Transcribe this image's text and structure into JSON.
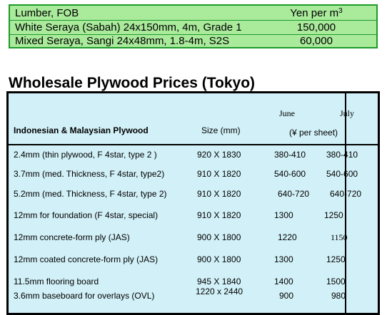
{
  "lumber": {
    "header": {
      "label": "Lumber, FOB",
      "unit": "Yen per m",
      "unit_sup": "3"
    },
    "rows": [
      {
        "name": "White Seraya (Sabah) 24x150mm, 4m, Grade 1",
        "price": "150,000"
      },
      {
        "name": "Mixed Seraya, Sangi 24x48mm, 1.8-4m, S2S",
        "price": "60,000"
      }
    ]
  },
  "plywood": {
    "title": "Wholesale Plywood Prices (Tokyo)",
    "headers": {
      "product": "Indonesian & Malaysian Plywood",
      "size": "Size (mm)",
      "june": "June",
      "july": "July",
      "unit": "(¥ per sheet)"
    },
    "rows": [
      {
        "name": "2.4mm  (thin plywood, F 4star, type 2 )",
        "size": "920 X 1830",
        "june": "380-410",
        "july": "380-410"
      },
      {
        "name": "3.7mm  (med. Thickness,  F 4star, type2)",
        "size": "910 X 1820",
        "june": "540-600",
        "july": "540-600"
      },
      {
        "name": "5.2mm  (med. Thickness, F 4star, type 2)",
        "size": "910 X 1820",
        "june": "640-720",
        "july": "640-720"
      },
      {
        "name": "12mm for foundation (F 4star, special)",
        "size": "910 X 1820",
        "june": "1300",
        "july": "1250"
      },
      {
        "name": "12mm concrete-form ply (JAS)",
        "size": "900 X 1800",
        "june": "1220",
        "july": "1150"
      },
      {
        "name": "12mm coated concrete-form ply (JAS)",
        "size": "900 X 1800",
        "june": "1300",
        "july": "1250"
      },
      {
        "name": "11.5mm flooring board",
        "size": "945 X 1840",
        "june": "1400",
        "july": "1500"
      },
      {
        "name": "3.6mm baseboard for overlays (OVL)",
        "size": "1220 x 2440",
        "june": "900",
        "july": "980"
      }
    ]
  }
}
